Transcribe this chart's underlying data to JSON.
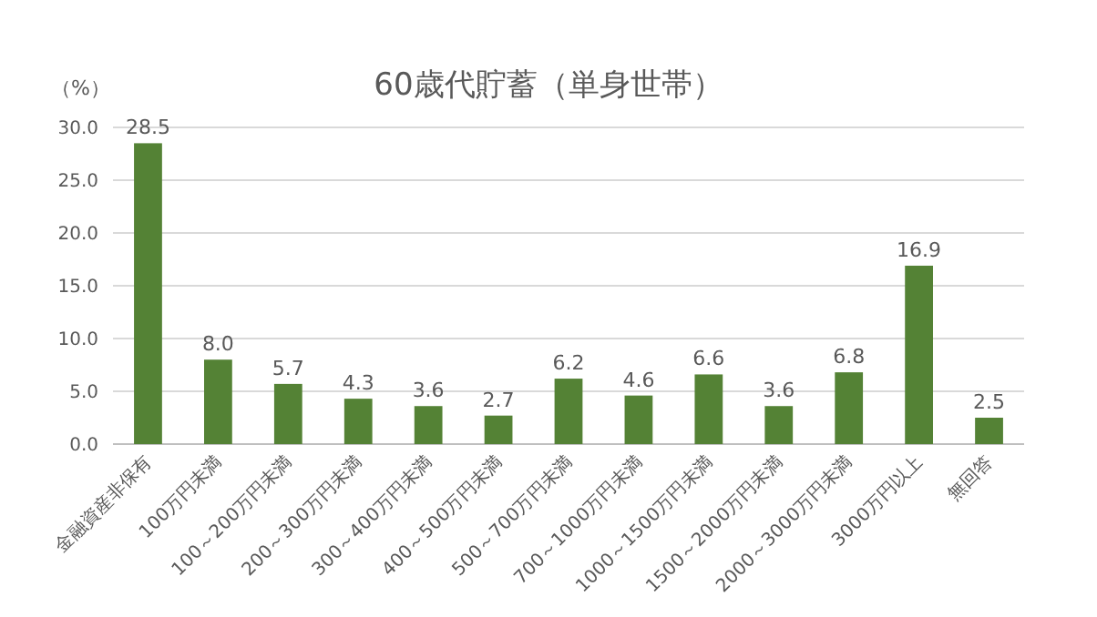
{
  "chart_data": {
    "type": "bar",
    "title": "60歳代貯蓄（単身世帯）",
    "ylabel": "（%）",
    "categories": [
      "金融資産非保有",
      "100万円未満",
      "100～200万円未満",
      "200～300万円未満",
      "300～400万円未満",
      "400～500万円未満",
      "500～700万円未満",
      "700～1000万円未満",
      "1000～1500万円未満",
      "1500～2000万円未満",
      "2000～3000万円未満",
      "3000万円以上",
      "無回答"
    ],
    "values": [
      28.5,
      8.0,
      5.7,
      4.3,
      3.6,
      2.7,
      6.2,
      4.6,
      6.6,
      3.6,
      6.8,
      16.9,
      2.5
    ],
    "color": "#548235",
    "ylim": [
      0,
      30
    ],
    "yticks": [
      {
        "value": 0,
        "label": "0.0"
      },
      {
        "value": 5,
        "label": "5.0"
      },
      {
        "value": 10,
        "label": "10.0"
      },
      {
        "value": 15,
        "label": "15.0"
      },
      {
        "value": 20,
        "label": "20.0"
      },
      {
        "value": 25,
        "label": "25.0"
      },
      {
        "value": 30,
        "label": "30.0"
      }
    ],
    "value_labels": [
      "28.5",
      "8.0",
      "5.7",
      "4.3",
      "3.6",
      "2.7",
      "6.2",
      "4.6",
      "6.6",
      "3.6",
      "6.8",
      "16.9",
      "2.5"
    ],
    "grid": true
  }
}
